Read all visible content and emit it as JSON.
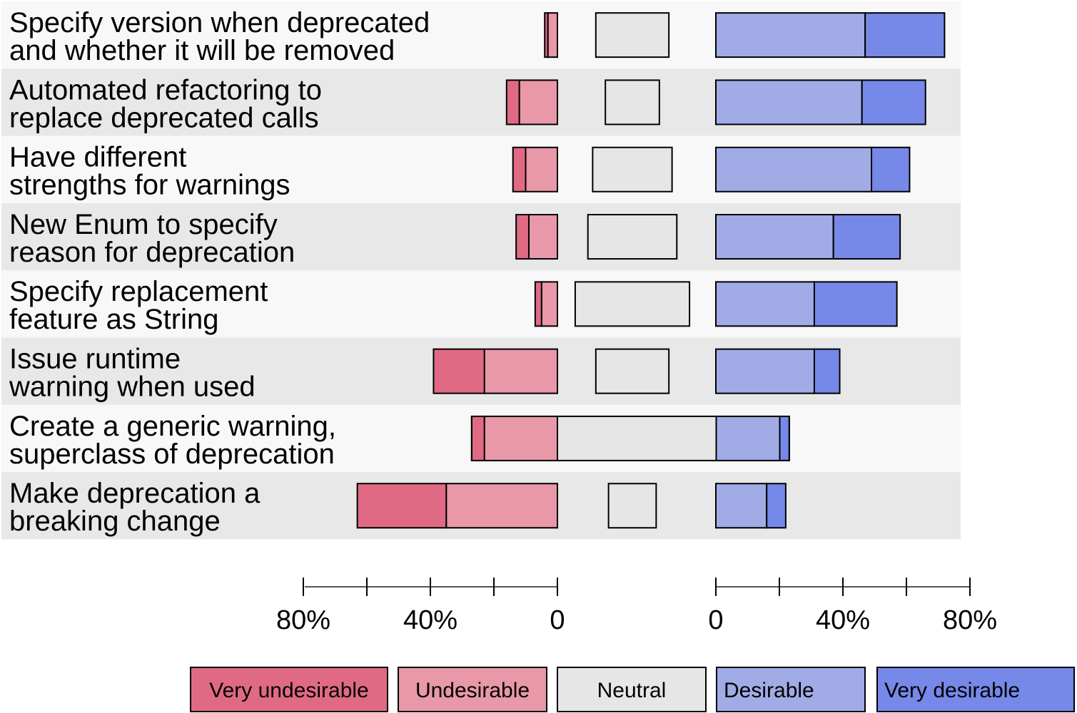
{
  "chart_data": {
    "type": "bar",
    "subtype": "diverging-likert",
    "categories": [
      [
        "Specify version when deprecated",
        "and whether it will be removed"
      ],
      [
        "Automated refactoring to",
        "replace deprecated calls"
      ],
      [
        "Have different",
        "strengths for warnings"
      ],
      [
        "New Enum to specify",
        "reason for deprecation"
      ],
      [
        "Specify replacement",
        "feature as String"
      ],
      [
        "Issue runtime",
        "warning when used"
      ],
      [
        "Create a generic warning,",
        "superclass of deprecation"
      ],
      [
        "Make deprecation a",
        "breaking change"
      ]
    ],
    "series": [
      {
        "name": "Very undesirable",
        "color": "#e06a84",
        "side": "negative",
        "values": [
          1,
          4,
          4,
          4,
          2,
          16,
          4,
          28
        ]
      },
      {
        "name": "Undesirable",
        "color": "#e898a8",
        "side": "negative",
        "values": [
          3,
          12,
          10,
          9,
          5,
          23,
          23,
          35
        ]
      },
      {
        "name": "Neutral",
        "color": "#e6e6e6",
        "side": "neutral",
        "values": [
          23,
          17,
          25,
          28,
          36,
          23,
          50,
          15
        ]
      },
      {
        "name": "Desirable",
        "color": "#a1ace6",
        "side": "positive",
        "values": [
          47,
          46,
          49,
          37,
          31,
          31,
          20,
          16
        ]
      },
      {
        "name": "Very desirable",
        "color": "#7688e8",
        "side": "positive",
        "values": [
          25,
          20,
          12,
          21,
          26,
          8,
          3,
          6
        ]
      }
    ],
    "x_ticks": [
      "80%",
      "40%",
      "0",
      "0",
      "40%",
      "80%"
    ],
    "xlim": [
      0,
      80
    ],
    "unit": "%",
    "legend": {
      "position": "bottom"
    },
    "row_background_colors": [
      "#f8f8f8",
      "#e8e8e8"
    ]
  }
}
